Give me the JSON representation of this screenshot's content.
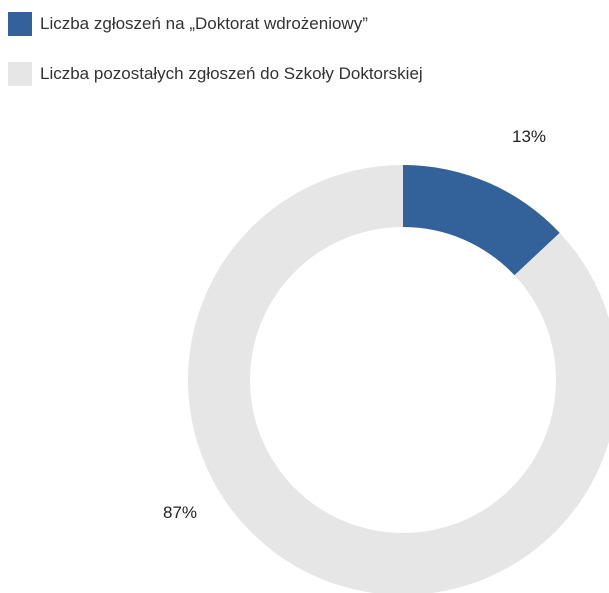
{
  "chart_data": {
    "type": "pie",
    "variant": "donut",
    "title": "",
    "legend_placement": "top-left",
    "slices": [
      {
        "name": "Liczba zgłoszeń na „Doktorat wdrożeniowy”",
        "value": 13,
        "label": "13%",
        "color": "#33629a"
      },
      {
        "name": "Liczba pozostałych zgłoszeń do Szkoły Doktorskiej",
        "value": 87,
        "label": "87%",
        "color": "#e6e6e6"
      }
    ]
  }
}
